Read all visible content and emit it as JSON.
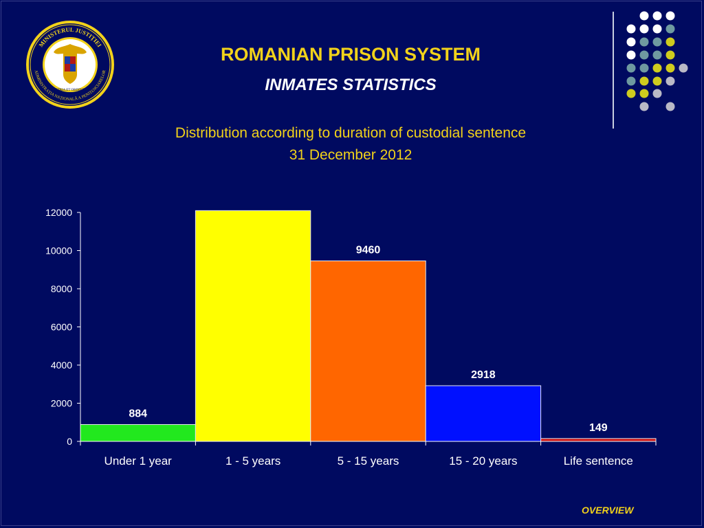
{
  "header": {
    "title": "ROMANIAN PRISON SYSTEM",
    "subtitle": "INMATES STATISTICS",
    "chart_title_line1": "Distribution according to duration of custodial sentence",
    "chart_title_line2": "31 December 2012"
  },
  "logo": {
    "outer_text": "MINISTERUL JUSTIȚIEI · ADMINISTRAȚIA NAȚIONALĂ A PENITENCIARELOR",
    "motto": "PRO PATRIA ET ORDINE IURIS",
    "icon": "coat-of-arms-icon"
  },
  "nav": {
    "overview_label": "OVERVIEW"
  },
  "colors": {
    "background": "#000a60",
    "title": "#f2d21a",
    "dot_white": "#ffffff",
    "dot_teal": "#6f9aa0",
    "dot_yellow": "#cfcc1e",
    "dot_gray": "#b9b9c6"
  },
  "chart_data": {
    "type": "bar",
    "categories": [
      "Under 1 year",
      "1 - 5 years",
      "5 - 15 years",
      "15 - 20 years",
      "Life sentence"
    ],
    "values": [
      884,
      12095,
      9460,
      2918,
      149
    ],
    "data_labels": [
      "884",
      "",
      "9460",
      "2918",
      "149"
    ],
    "bar_colors": [
      "#22e81e",
      "#ffff00",
      "#ff6600",
      "#0010ff",
      "#cc1010"
    ],
    "ylim": [
      0,
      12000
    ],
    "yticks": [
      0,
      2000,
      4000,
      6000,
      8000,
      10000,
      12000
    ],
    "title": "Distribution according to duration of custodial sentence 31 December 2012",
    "xlabel": "",
    "ylabel": "",
    "grid": false,
    "legend": "none"
  }
}
